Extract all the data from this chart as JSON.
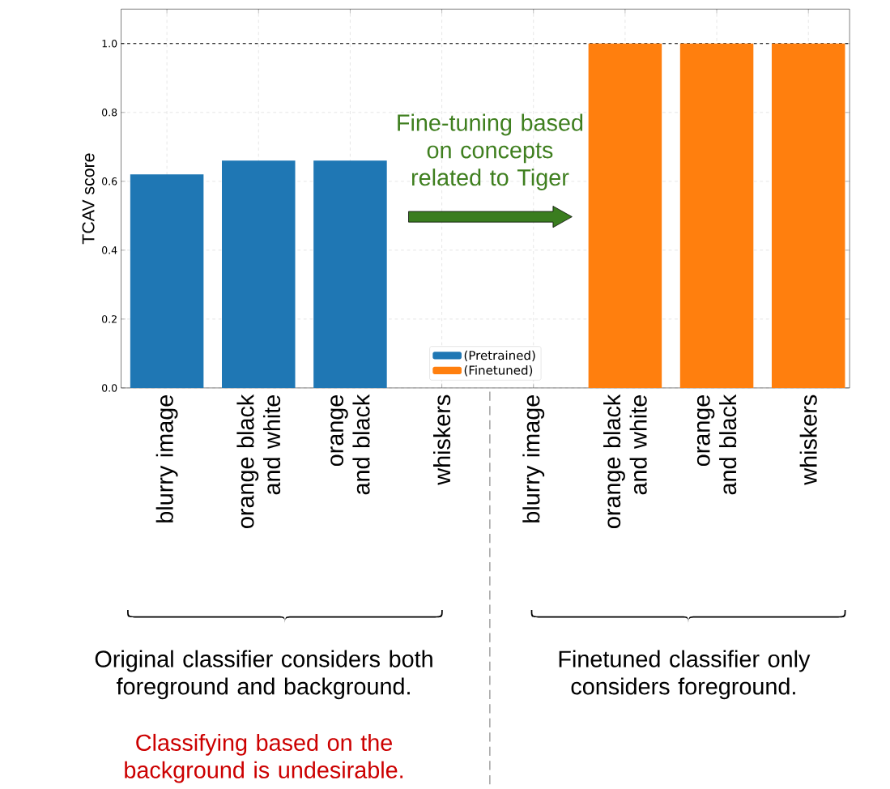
{
  "chart_data": {
    "type": "bar",
    "ylabel": "TCAV score",
    "categories": [
      "blurry image",
      "orange black and white",
      "orange and black",
      "whiskers",
      "blurry image",
      "orange black and white",
      "orange and black",
      "whiskers"
    ],
    "series": [
      {
        "name": "(Pretrained)",
        "color": "#1f77b4",
        "values": [
          0.62,
          0.66,
          0.66,
          0,
          null,
          null,
          null,
          null
        ]
      },
      {
        "name": "(Finetuned)",
        "color": "#ff7f0e",
        "values": [
          null,
          null,
          null,
          null,
          0,
          1.0,
          1.0,
          1.0
        ]
      }
    ],
    "ylim": [
      0,
      1.1
    ],
    "yticks": [
      {
        "value": 0,
        "label": "0.0"
      },
      {
        "value": 0.2,
        "label": "0.2"
      },
      {
        "value": 0.4,
        "label": "0.4"
      },
      {
        "value": 0.6,
        "label": "0.6"
      },
      {
        "value": 0.8,
        "label": "0.8"
      },
      {
        "value": 1.0,
        "label": "1.0"
      }
    ],
    "ref_lines": [
      {
        "axis": "y",
        "value": 1.0,
        "color": "#000000",
        "line_style": "dashed"
      }
    ],
    "grid": true,
    "legend": "bottom",
    "annotations": [
      "Fine-tuning based on concepts related to Tiger",
      "Original classifier considers both foreground and background.",
      "Finetuned classifier only considers foreground.",
      "Classifying based on the background is undesirable."
    ]
  }
}
